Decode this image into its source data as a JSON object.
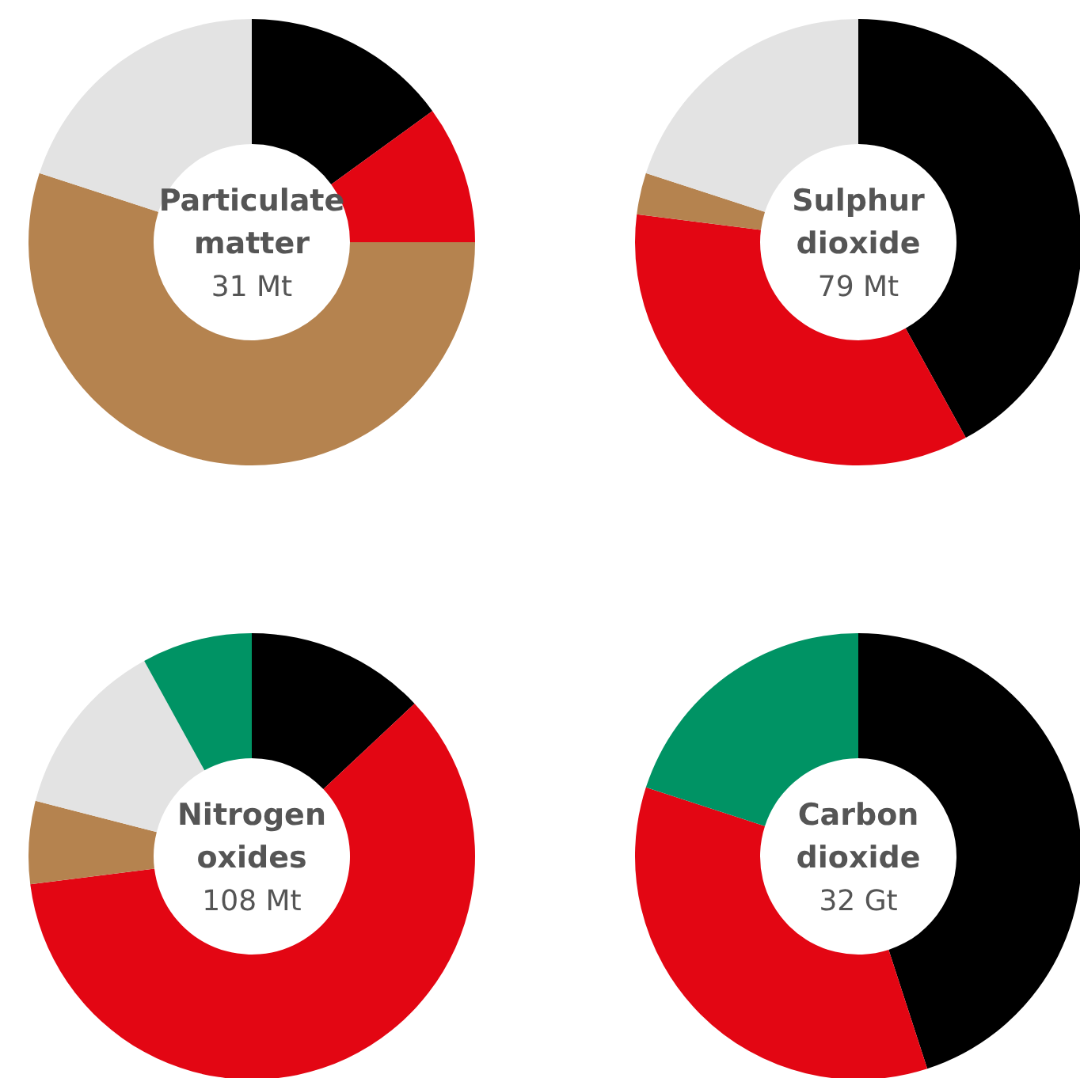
{
  "chart_data": [
    {
      "type": "donut",
      "title": "Particulate matter",
      "subtitle": "31 Mt",
      "categories": [
        null,
        null,
        null,
        null
      ],
      "values": [
        15,
        10,
        55,
        20
      ],
      "colors": [
        "#000000",
        "#e30613",
        "#b5834f",
        "#e3e3e3"
      ]
    },
    {
      "type": "donut",
      "title": "Sulphur dioxide",
      "subtitle": "79 Mt",
      "categories": [
        null,
        null,
        null,
        null
      ],
      "values": [
        42,
        35,
        3,
        20
      ],
      "colors": [
        "#000000",
        "#e30613",
        "#b5834f",
        "#e3e3e3"
      ]
    },
    {
      "type": "donut",
      "title": "Nitrogen oxides",
      "subtitle": "108 Mt",
      "categories": [
        null,
        null,
        null,
        null,
        null
      ],
      "values": [
        13,
        60,
        6,
        13,
        8
      ],
      "colors": [
        "#000000",
        "#e30613",
        "#b5834f",
        "#e3e3e3",
        "#009364"
      ]
    },
    {
      "type": "donut",
      "title": "Carbon dioxide",
      "subtitle": "32 Gt",
      "categories": [
        null,
        null,
        null
      ],
      "values": [
        45,
        35,
        20
      ],
      "colors": [
        "#000000",
        "#e30613",
        "#009364"
      ]
    }
  ]
}
